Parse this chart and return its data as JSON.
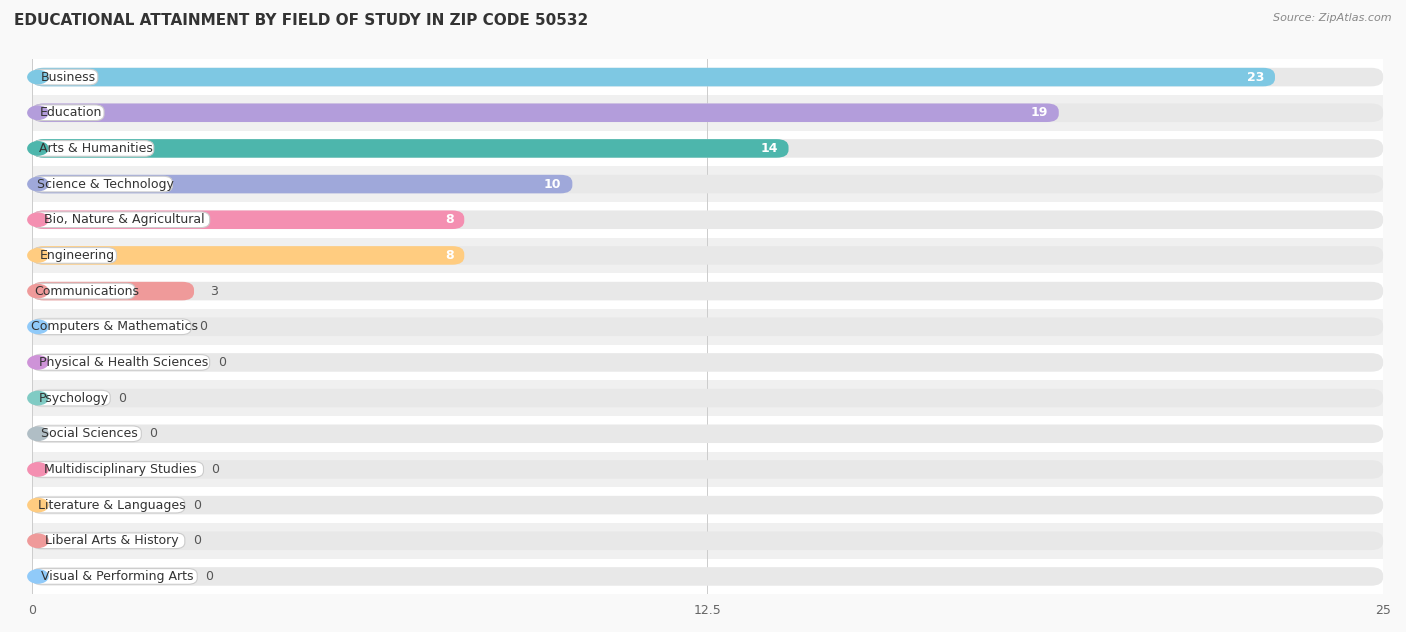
{
  "title": "EDUCATIONAL ATTAINMENT BY FIELD OF STUDY IN ZIP CODE 50532",
  "source": "Source: ZipAtlas.com",
  "categories": [
    "Business",
    "Education",
    "Arts & Humanities",
    "Science & Technology",
    "Bio, Nature & Agricultural",
    "Engineering",
    "Communications",
    "Computers & Mathematics",
    "Physical & Health Sciences",
    "Psychology",
    "Social Sciences",
    "Multidisciplinary Studies",
    "Literature & Languages",
    "Liberal Arts & History",
    "Visual & Performing Arts"
  ],
  "values": [
    23,
    19,
    14,
    10,
    8,
    8,
    3,
    0,
    0,
    0,
    0,
    0,
    0,
    0,
    0
  ],
  "bar_colors": [
    "#7ec8e3",
    "#b39ddb",
    "#4db6ac",
    "#9fa8da",
    "#f48fb1",
    "#ffcc80",
    "#ef9a9a",
    "#90caf9",
    "#ce93d8",
    "#80cbc4",
    "#b0bec5",
    "#f48fb1",
    "#ffcc80",
    "#ef9a9a",
    "#90caf9"
  ],
  "xlim": [
    0,
    25
  ],
  "xticks": [
    0,
    12.5,
    25
  ],
  "background_color": "#f9f9f9",
  "row_bg_odd": "#f0f0f0",
  "row_bg_even": "#ffffff",
  "bar_bg_color": "#e8e8e8",
  "title_fontsize": 11,
  "label_fontsize": 9,
  "source_fontsize": 8
}
